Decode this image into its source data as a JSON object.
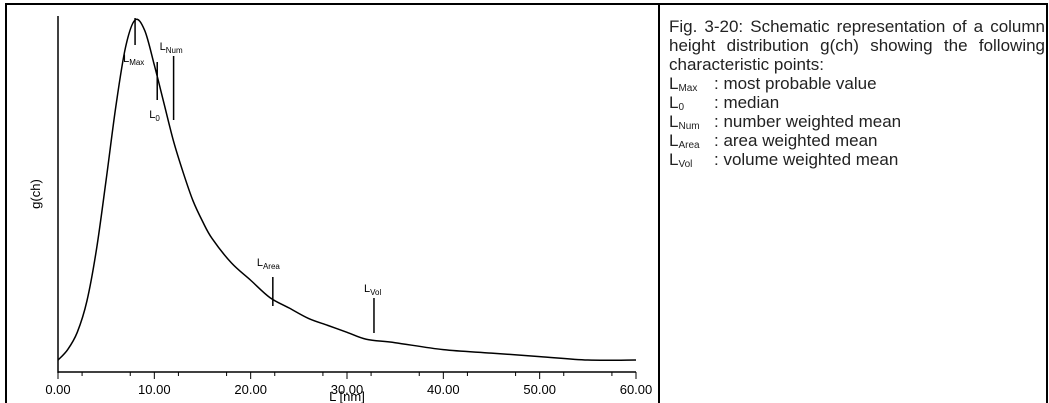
{
  "caption": {
    "text": "Fig. 3-20: Schematic representation of a column height distribution g(ch) showing the following characteristic points:",
    "legend": [
      {
        "symbol": "L",
        "sub": "Max",
        "desc": ": most probable value"
      },
      {
        "symbol": "L",
        "sub": "0",
        "desc": ": median"
      },
      {
        "symbol": "L",
        "sub": "Num",
        "desc": ": number weighted mean"
      },
      {
        "symbol": "L",
        "sub": "Area",
        "desc": ": area weighted mean"
      },
      {
        "symbol": "L",
        "sub": "Vol",
        "desc": ": volume weighted mean"
      }
    ]
  },
  "chart_data": {
    "type": "line",
    "title": "",
    "xlabel": "L [nm]",
    "ylabel": "g(ch)",
    "xlim": [
      0,
      60
    ],
    "ylim": [
      0,
      1
    ],
    "xticks": [
      0,
      10,
      20,
      30,
      40,
      50,
      60
    ],
    "xtick_labels": [
      "0.00",
      "10.00",
      "20.00",
      "30.00",
      "40.00",
      "50.00",
      "60.00"
    ],
    "yticks": [],
    "grid": false,
    "series": [
      {
        "x": [
          0,
          1,
          2,
          3,
          4,
          5,
          6,
          7,
          8,
          9,
          10,
          11,
          12,
          13,
          14,
          15,
          16,
          18,
          20,
          22,
          24,
          26,
          28,
          30,
          32,
          35,
          40,
          45,
          50,
          55,
          60
        ],
        "y": [
          0.02,
          0.05,
          0.1,
          0.19,
          0.34,
          0.54,
          0.75,
          0.92,
          1.0,
          0.97,
          0.87,
          0.76,
          0.65,
          0.56,
          0.48,
          0.42,
          0.37,
          0.3,
          0.25,
          0.2,
          0.17,
          0.14,
          0.12,
          0.1,
          0.08,
          0.07,
          0.05,
          0.04,
          0.03,
          0.02,
          0.02
        ]
      }
    ],
    "annotations": [
      {
        "label": "L",
        "sub": "Max",
        "x": 8.0,
        "y": 1.0
      },
      {
        "label": "L",
        "sub": "0",
        "x": 10.3,
        "y": 0.85
      },
      {
        "label": "L",
        "sub": "Num",
        "x": 12.0,
        "y": 0.65
      },
      {
        "label": "L",
        "sub": "Area",
        "x": 22.3,
        "y": 0.2
      },
      {
        "label": "L",
        "sub": "Vol",
        "x": 32.8,
        "y": 0.08
      }
    ]
  }
}
